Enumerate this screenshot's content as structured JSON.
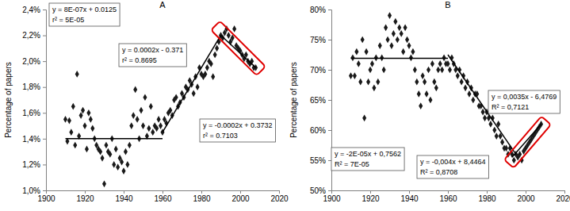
{
  "chart_data": [
    {
      "type": "scatter",
      "title": "A",
      "y_label": "Percentage of papers",
      "xlim": [
        1900,
        2020
      ],
      "xticks": [
        1900,
        1920,
        1940,
        1960,
        1980,
        2000,
        2020
      ],
      "ylim": [
        1.0,
        2.4
      ],
      "yticks": [
        {
          "value": 1.0,
          "label": "1,0%"
        },
        {
          "value": 1.2,
          "label": "1,2%"
        },
        {
          "value": 1.4,
          "label": "1,4%"
        },
        {
          "value": 1.6,
          "label": "1,6%"
        },
        {
          "value": 1.8,
          "label": "1,8%"
        },
        {
          "value": 2.0,
          "label": "2,0%"
        },
        {
          "value": 2.2,
          "label": "2,2%"
        },
        {
          "value": 2.4,
          "label": "2,4%"
        }
      ],
      "series": [
        {
          "type": "scatter",
          "marker": "diamond",
          "color": "#1a1a1a",
          "x": [
            1910,
            1911,
            1912,
            1913,
            1914,
            1915,
            1916,
            1917,
            1918,
            1919,
            1920,
            1921,
            1922,
            1923,
            1924,
            1925,
            1926,
            1927,
            1928,
            1929,
            1930,
            1931,
            1932,
            1933,
            1934,
            1935,
            1936,
            1937,
            1938,
            1939,
            1940,
            1941,
            1942,
            1943,
            1944,
            1945,
            1946,
            1947,
            1948,
            1949,
            1950,
            1951,
            1952,
            1953,
            1954,
            1955,
            1956,
            1957,
            1958,
            1959,
            1960,
            1961,
            1962,
            1963,
            1964,
            1965,
            1966,
            1967,
            1968,
            1969,
            1970,
            1971,
            1972,
            1973,
            1974,
            1975,
            1976,
            1977,
            1978,
            1979,
            1980,
            1981,
            1982,
            1983,
            1984,
            1985,
            1986,
            1987,
            1988,
            1989,
            1990,
            1991,
            1992,
            1993,
            1994,
            1995,
            1996,
            1997,
            1998,
            1999,
            2000,
            2001,
            2002,
            2003,
            2004,
            2005,
            2006,
            2007,
            2008
          ],
          "values": [
            1.55,
            1.38,
            1.54,
            1.45,
            1.65,
            1.35,
            1.9,
            1.42,
            1.58,
            1.62,
            1.5,
            1.32,
            1.6,
            1.55,
            1.48,
            1.4,
            1.35,
            1.32,
            1.3,
            1.25,
            1.05,
            1.35,
            1.3,
            1.28,
            1.4,
            1.2,
            1.32,
            1.18,
            1.25,
            1.22,
            1.15,
            1.3,
            1.2,
            1.35,
            1.5,
            1.58,
            1.78,
            1.55,
            1.4,
            1.62,
            1.5,
            1.72,
            1.42,
            1.48,
            1.65,
            1.45,
            1.5,
            1.48,
            1.55,
            1.5,
            1.45,
            1.55,
            1.52,
            1.6,
            1.62,
            1.58,
            1.7,
            1.72,
            1.65,
            1.68,
            1.75,
            1.72,
            1.8,
            1.78,
            1.85,
            1.82,
            1.75,
            1.88,
            1.8,
            1.95,
            1.9,
            1.88,
            1.9,
            1.95,
            2.0,
            1.98,
            1.88,
            2.05,
            2.1,
            2.15,
            2.2,
            2.18,
            2.22,
            2.25,
            2.2,
            2.15,
            2.18,
            2.25,
            2.12,
            2.1,
            2.08,
            2.05,
            2.02,
            2.05,
            2.0,
            1.98,
            2.0,
            1.95,
            1.95
          ]
        },
        {
          "type": "line",
          "color": "#000000",
          "x": [
            1910,
            1960
          ],
          "values": [
            1.4,
            1.4
          ]
        },
        {
          "type": "line",
          "color": "#000000",
          "x": [
            1960,
            1990
          ],
          "values": [
            1.45,
            2.2
          ]
        },
        {
          "type": "line",
          "color": "#000000",
          "x": [
            1990,
            2008
          ],
          "values": [
            2.2,
            1.95
          ]
        }
      ],
      "annotations": [
        [
          "y = 8E-07x + 0.0125",
          "r² = 5E-05"
        ],
        [
          "y = 0.0002x - 0.371",
          "r² = 0.8695"
        ],
        [
          "y = -0.0002x + 0.3732",
          "r² = 0.7103"
        ]
      ],
      "highlight": {
        "color": "#e00000",
        "x": [
          1989,
          2009
        ],
        "values": [
          2.25,
          1.95
        ]
      }
    },
    {
      "type": "scatter",
      "title": "B",
      "y_label": "Percentage of papers",
      "xlim": [
        1900,
        2020
      ],
      "xticks": [
        1900,
        1920,
        1940,
        1960,
        1980,
        2000,
        2020
      ],
      "ylim": [
        50,
        80
      ],
      "yticks": [
        {
          "value": 50,
          "label": "50%"
        },
        {
          "value": 55,
          "label": "55%"
        },
        {
          "value": 60,
          "label": "60%"
        },
        {
          "value": 65,
          "label": "65%"
        },
        {
          "value": 70,
          "label": "70%"
        },
        {
          "value": 75,
          "label": "75%"
        },
        {
          "value": 80,
          "label": "80%"
        }
      ],
      "series": [
        {
          "type": "scatter",
          "marker": "diamond",
          "color": "#1a1a1a",
          "x": [
            1910,
            1911,
            1912,
            1913,
            1914,
            1915,
            1916,
            1917,
            1918,
            1919,
            1920,
            1921,
            1922,
            1923,
            1924,
            1925,
            1926,
            1927,
            1928,
            1929,
            1930,
            1931,
            1932,
            1933,
            1934,
            1935,
            1936,
            1937,
            1938,
            1939,
            1940,
            1941,
            1942,
            1943,
            1944,
            1945,
            1946,
            1947,
            1948,
            1949,
            1950,
            1951,
            1952,
            1953,
            1954,
            1955,
            1956,
            1957,
            1958,
            1959,
            1960,
            1961,
            1962,
            1963,
            1964,
            1965,
            1966,
            1967,
            1968,
            1969,
            1970,
            1971,
            1972,
            1973,
            1974,
            1975,
            1976,
            1977,
            1978,
            1979,
            1980,
            1981,
            1982,
            1983,
            1984,
            1985,
            1986,
            1987,
            1988,
            1989,
            1990,
            1991,
            1992,
            1993,
            1994,
            1995,
            1996,
            1997,
            1998,
            1999,
            2000,
            2001,
            2002,
            2003,
            2004,
            2005,
            2006,
            2007,
            2008
          ],
          "values": [
            69,
            72,
            69,
            73,
            71,
            68,
            75,
            62,
            73,
            68,
            70,
            71,
            67,
            72,
            68,
            74,
            72,
            70,
            77,
            75,
            79,
            74,
            76,
            78,
            75,
            77,
            76,
            73,
            77,
            75,
            74,
            72,
            73,
            70,
            68,
            66,
            64,
            69,
            68,
            66,
            70,
            65,
            71,
            68,
            67,
            70,
            71,
            70,
            72,
            71,
            71,
            70,
            72,
            71,
            70,
            69,
            70,
            68,
            69,
            67,
            68,
            66,
            67,
            65,
            66,
            66,
            64,
            64,
            63,
            62,
            63,
            62,
            61,
            62,
            60,
            59,
            61,
            59,
            58,
            57,
            57,
            56,
            57,
            56,
            55,
            56,
            55.5,
            56,
            55,
            56.5,
            57,
            57.5,
            58,
            58.5,
            59,
            59.5,
            60,
            60.5,
            61
          ]
        },
        {
          "type": "line",
          "color": "#000000",
          "x": [
            1910,
            1960
          ],
          "values": [
            71.9,
            71.9
          ]
        },
        {
          "type": "line",
          "color": "#000000",
          "x": [
            1960,
            1995
          ],
          "values": [
            72.5,
            56
          ]
        },
        {
          "type": "line",
          "color": "#000000",
          "x": [
            1993,
            2008
          ],
          "values": [
            55.5,
            61
          ]
        }
      ],
      "annotations": [
        [
          "y = 0,0035x - 6,4769",
          "R² = 0,7121"
        ],
        [
          "y = -2E-05x + 0,7562",
          "R² = 7E-05"
        ],
        [
          "y = -0,004x + 8,4464",
          "R² = 0,8708"
        ]
      ],
      "highlight": {
        "color": "#e00000",
        "x": [
          1993,
          2009
        ],
        "values": [
          55,
          61
        ]
      }
    }
  ]
}
